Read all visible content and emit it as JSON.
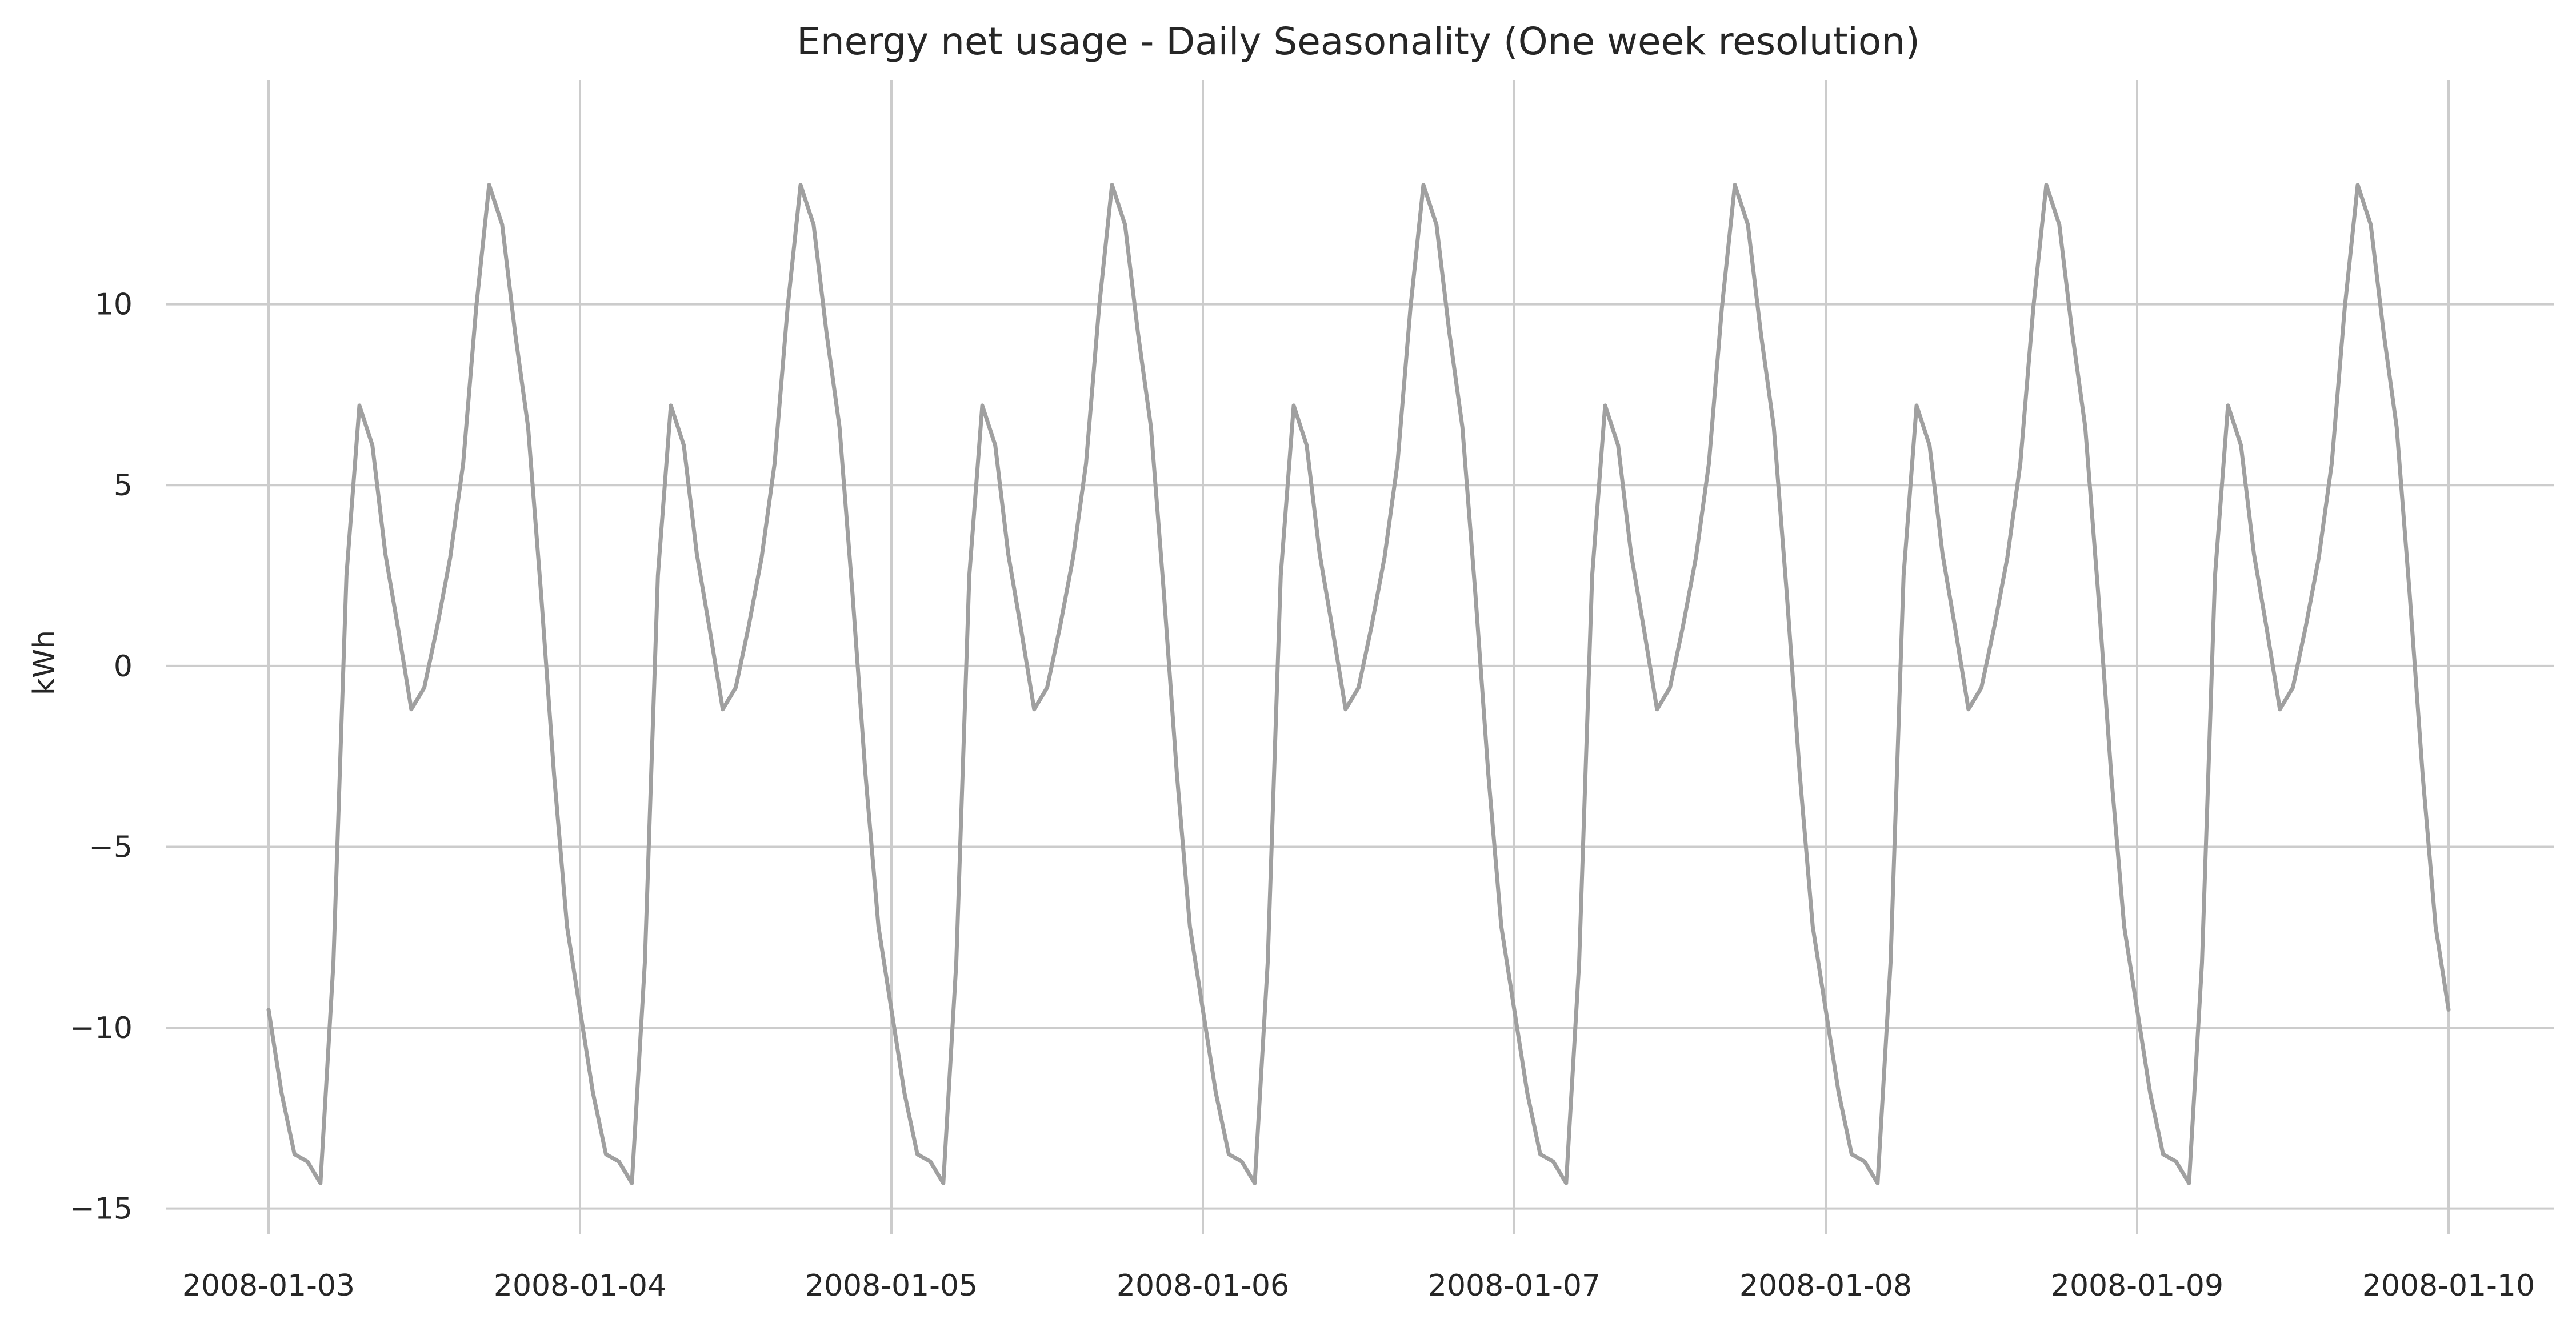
{
  "chart_data": {
    "type": "line",
    "title": "Energy net usage - Daily Seasonality (One week resolution)",
    "xlabel": "",
    "ylabel": "kWh",
    "x_tick_labels": [
      "2008-01-03",
      "2008-01-04",
      "2008-01-05",
      "2008-01-06",
      "2008-01-07",
      "2008-01-08",
      "2008-01-09",
      "2008-01-10"
    ],
    "x_range": [
      "2008-01-03",
      "2008-01-10"
    ],
    "y_ticks": [
      10,
      5,
      0,
      -5,
      -10,
      -15
    ],
    "y_tick_labels": [
      "10",
      "5",
      "0",
      "−5",
      "−10",
      "−15"
    ],
    "ylim": [
      -15.7,
      16.2
    ],
    "grid": true,
    "series_color": "#a0a0a0",
    "daily_profile_hour": [
      0,
      1,
      2,
      3,
      4,
      5,
      6,
      7,
      8,
      9,
      10,
      11,
      12,
      13,
      14,
      15,
      16,
      17,
      18,
      19,
      20,
      21,
      22,
      23
    ],
    "daily_profile_kwh": [
      -9.5,
      -11.8,
      -13.5,
      -13.7,
      -14.3,
      -8.2,
      2.5,
      7.2,
      6.1,
      3.1,
      1.0,
      -1.2,
      -0.6,
      1.1,
      3.0,
      5.6,
      9.9,
      13.3,
      12.2,
      9.2,
      6.6,
      2.0,
      -3.0,
      -7.2
    ],
    "days": [
      "2008-01-03",
      "2008-01-04",
      "2008-01-05",
      "2008-01-06",
      "2008-01-07",
      "2008-01-08",
      "2008-01-09"
    ],
    "final_point": {
      "x": "2008-01-10 00:00",
      "y": -9.5
    }
  }
}
